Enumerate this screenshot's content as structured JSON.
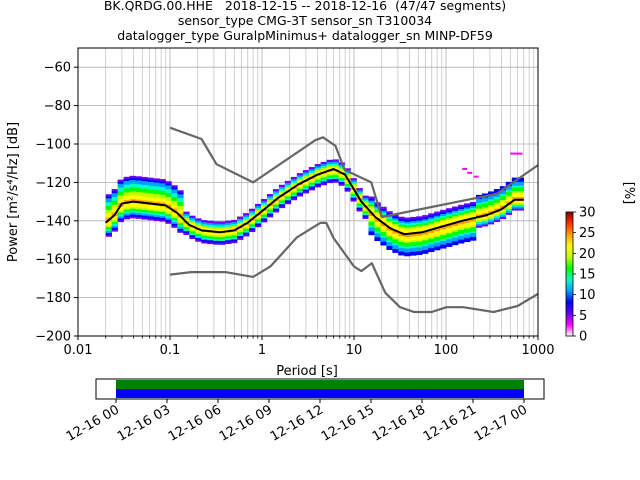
{
  "chart_data": {
    "type": "line",
    "title_lines": [
      "BK.QRDG.00.HHE   2018-12-15 -- 2018-12-16  (47/47 segments)",
      "sensor_type CMG-3T sensor_sn T310034",
      "datalogger_type GuralpMinimus+ datalogger_sn MINP-DF59"
    ],
    "xlabel": "Period [s]",
    "ylabel": "Power [m²/s⁴/Hz] [dB]",
    "xscale": "log",
    "xlim": [
      0.01,
      1000
    ],
    "ylim": [
      -200,
      -50
    ],
    "xticks": [
      0.01,
      0.1,
      1,
      10,
      100,
      1000
    ],
    "xtick_labels": [
      "0.01",
      "0.1",
      "1",
      "10",
      "100",
      "1000"
    ],
    "yticks": [
      -200,
      -180,
      -160,
      -140,
      -120,
      -100,
      -80,
      -60
    ],
    "grid": true,
    "series": [
      {
        "name": "NHNM",
        "color": "#666666",
        "points": [
          [
            0.1,
            -91.5
          ],
          [
            0.22,
            -97.4
          ],
          [
            0.32,
            -110.5
          ],
          [
            0.8,
            -120
          ],
          [
            3.8,
            -98
          ],
          [
            4.6,
            -96.5
          ],
          [
            6.3,
            -101
          ],
          [
            7.9,
            -113.5
          ],
          [
            15.4,
            -120
          ],
          [
            20,
            -138
          ],
          [
            354.8,
            -126
          ],
          [
            1000,
            -111
          ]
        ]
      },
      {
        "name": "NLNM",
        "color": "#666666",
        "points": [
          [
            0.1,
            -168
          ],
          [
            0.17,
            -166.7
          ],
          [
            0.4,
            -166.7
          ],
          [
            0.8,
            -169.2
          ],
          [
            1.24,
            -163.7
          ],
          [
            2.4,
            -148.6
          ],
          [
            4.3,
            -141.1
          ],
          [
            5,
            -141.1
          ],
          [
            6,
            -149
          ],
          [
            10,
            -163.8
          ],
          [
            12,
            -166.2
          ],
          [
            15.6,
            -162.1
          ],
          [
            21.9,
            -177.5
          ],
          [
            31.6,
            -185
          ],
          [
            45,
            -187.5
          ],
          [
            70,
            -187.5
          ],
          [
            101,
            -185
          ],
          [
            154,
            -185
          ],
          [
            328,
            -187.5
          ],
          [
            600,
            -184.4
          ],
          [
            1000,
            -178
          ]
        ]
      },
      {
        "name": "mode",
        "color": "#000000",
        "points": [
          [
            0.02,
            -141
          ],
          [
            0.025,
            -137
          ],
          [
            0.03,
            -131
          ],
          [
            0.04,
            -130
          ],
          [
            0.06,
            -131
          ],
          [
            0.09,
            -132
          ],
          [
            0.12,
            -136
          ],
          [
            0.16,
            -142
          ],
          [
            0.22,
            -145
          ],
          [
            0.35,
            -146
          ],
          [
            0.5,
            -145
          ],
          [
            0.7,
            -141
          ],
          [
            1,
            -135
          ],
          [
            1.5,
            -128
          ],
          [
            2.5,
            -121
          ],
          [
            4,
            -116
          ],
          [
            6,
            -113
          ],
          [
            8,
            -116
          ],
          [
            12,
            -130
          ],
          [
            17,
            -138
          ],
          [
            25,
            -144
          ],
          [
            35,
            -147
          ],
          [
            55,
            -146
          ],
          [
            90,
            -143
          ],
          [
            150,
            -140
          ],
          [
            280,
            -137
          ],
          [
            400,
            -134
          ],
          [
            560,
            -129
          ],
          [
            700,
            -129
          ]
        ]
      }
    ],
    "colorbar": {
      "label": "[%]",
      "min": 0,
      "max": 30,
      "ticks": [
        0,
        5,
        10,
        15,
        20,
        25,
        30
      ],
      "colors": [
        "#ffffff",
        "#ff00ff",
        "#6600ff",
        "#0000ff",
        "#00a0ff",
        "#00ffc0",
        "#00ff00",
        "#c0ff00",
        "#ffff00",
        "#ffa000",
        "#ff3000",
        "#800000"
      ]
    },
    "timeline": {
      "tick_labels": [
        "12-16 00",
        "12-16 03",
        "12-16 06",
        "12-16 09",
        "12-16 12",
        "12-16 15",
        "12-16 18",
        "12-16 21",
        "12-17 00"
      ],
      "bars": [
        {
          "name": "data",
          "color": "#008000",
          "start": "12-16 00",
          "end": "12-17 00"
        },
        {
          "name": "psd",
          "color": "#0000ff",
          "start": "12-16 00",
          "end": "12-17 00"
        }
      ]
    }
  }
}
